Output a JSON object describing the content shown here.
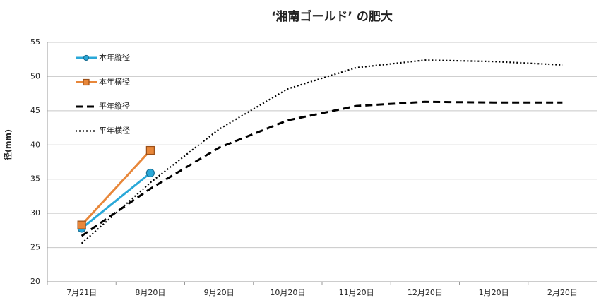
{
  "chart_data": {
    "type": "line",
    "title": "‘湘南ゴールド’ の肥大",
    "y_label": "径(mm)",
    "categories": [
      "7月21日",
      "8月20日",
      "9月20日",
      "10月20日",
      "11月20日",
      "12月20日",
      "1月20日",
      "2月20日"
    ],
    "series": [
      {
        "name": "本年縦径",
        "color": "#2aa8d8",
        "marker": "circle",
        "dash": "solid",
        "values": [
          27.8,
          35.9,
          null,
          null,
          null,
          null,
          null,
          null
        ]
      },
      {
        "name": "本年横径",
        "color": "#e8873a",
        "marker": "square",
        "dash": "solid",
        "values": [
          28.3,
          39.2,
          null,
          null,
          null,
          null,
          null,
          null
        ]
      },
      {
        "name": "平年縦径",
        "color": "#000000",
        "marker": "none",
        "dash": "dashed",
        "values": [
          26.7,
          33.6,
          39.6,
          43.6,
          45.7,
          46.3,
          46.2,
          46.2
        ]
      },
      {
        "name": "平年横径",
        "color": "#000000",
        "marker": "none",
        "dash": "dotted",
        "values": [
          25.6,
          34.5,
          42.3,
          48.2,
          51.3,
          52.4,
          52.2,
          51.7
        ]
      }
    ],
    "ylim": [
      20,
      55
    ],
    "yticks": [
      20,
      25,
      30,
      35,
      40,
      45,
      50,
      55
    ],
    "grid": true,
    "legend": "top-left"
  }
}
